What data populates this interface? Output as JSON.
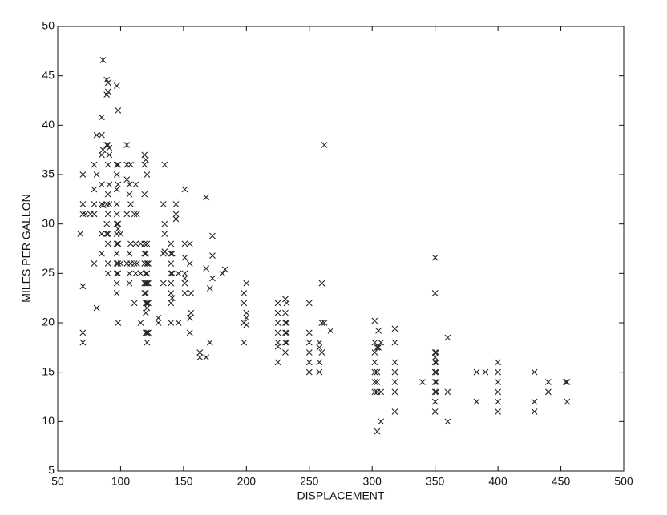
{
  "chart_data": {
    "type": "scatter",
    "xlabel": "DISPLACEMENT",
    "ylabel": "MILES PER GALLON",
    "xlim": [
      50,
      500
    ],
    "ylim": [
      5,
      50
    ],
    "xticks": [
      50,
      100,
      150,
      200,
      250,
      300,
      350,
      400,
      450,
      500
    ],
    "yticks": [
      5,
      10,
      15,
      20,
      25,
      30,
      35,
      40,
      45,
      50
    ],
    "marker": "x",
    "color": "#222222",
    "x": [
      68,
      70,
      70,
      70,
      70,
      70,
      70,
      72,
      76,
      79,
      79,
      79,
      79,
      79,
      81,
      81,
      81,
      85,
      85,
      85,
      85,
      85,
      85,
      85,
      86,
      86,
      86,
      89,
      89,
      89,
      89,
      89,
      89,
      90,
      90,
      90,
      90,
      90,
      90,
      90,
      90,
      90,
      90,
      91,
      91,
      91,
      91,
      97,
      97,
      97,
      97,
      97,
      97,
      97,
      97,
      97,
      97,
      97,
      97,
      97,
      97,
      98,
      98,
      98,
      98,
      98,
      98,
      98,
      98,
      98,
      100,
      100,
      105,
      105,
      105,
      105,
      105,
      107,
      107,
      107,
      107,
      107,
      108,
      108,
      108,
      108,
      111,
      111,
      111,
      112,
      112,
      112,
      113,
      113,
      116,
      116,
      116,
      119,
      119,
      119,
      119,
      119,
      119,
      119,
      119,
      120,
      120,
      120,
      120,
      120,
      120,
      120,
      120,
      121,
      121,
      121,
      121,
      121,
      121,
      121,
      121,
      121,
      122,
      122,
      122,
      122,
      130,
      130,
      134,
      134,
      134,
      135,
      135,
      135,
      135,
      140,
      140,
      140,
      140,
      140,
      140,
      140,
      140,
      141,
      141,
      141,
      144,
      144,
      144,
      146,
      146,
      151,
      151,
      151,
      151,
      151,
      151,
      151,
      155,
      155,
      155,
      155,
      156,
      156,
      163,
      163,
      168,
      168,
      168,
      171,
      171,
      173,
      173,
      173,
      181,
      183,
      198,
      198,
      198,
      198,
      200,
      200,
      200,
      200,
      225,
      225,
      225,
      225,
      225,
      225,
      225,
      231,
      231,
      231,
      231,
      231,
      231,
      232,
      232,
      232,
      232,
      250,
      250,
      250,
      250,
      250,
      250,
      258,
      258,
      258,
      258,
      260,
      260,
      260,
      262,
      262,
      267,
      302,
      302,
      302,
      302,
      302,
      302,
      302,
      304,
      304,
      304,
      304,
      304,
      305,
      305,
      307,
      307,
      307,
      318,
      318,
      318,
      318,
      318,
      318,
      318,
      340,
      350,
      350,
      350,
      350,
      350,
      350,
      350,
      350,
      350,
      350,
      351,
      351,
      351,
      351,
      351,
      360,
      360,
      360,
      383,
      383,
      390,
      400,
      400,
      400,
      400,
      400,
      400,
      429,
      429,
      429,
      440,
      440,
      454,
      455,
      455
    ],
    "values": [
      29,
      18,
      19,
      23.7,
      31,
      32,
      35,
      31,
      31,
      26,
      31,
      32,
      33.5,
      36,
      21.5,
      35,
      39,
      27,
      29,
      32,
      34,
      37,
      39,
      40.8,
      46.6,
      31.9,
      37.5,
      29,
      30,
      32,
      38,
      43.1,
      44.6,
      25,
      26,
      28,
      29,
      31,
      33,
      36,
      38,
      43.4,
      44.3,
      32,
      37,
      37.7,
      34,
      23,
      24,
      25,
      26,
      27,
      28,
      29,
      30,
      31,
      32,
      33.5,
      35,
      36,
      44,
      20,
      25,
      26,
      28,
      29.5,
      30,
      34,
      36,
      41.5,
      29,
      26,
      26,
      31,
      34.5,
      36,
      38,
      24,
      25,
      27,
      33,
      34,
      26,
      28,
      32,
      36,
      22,
      26,
      31,
      25,
      28,
      34,
      26,
      31,
      20,
      25,
      28,
      23,
      24,
      26,
      27,
      28,
      33,
      36,
      37,
      19,
      21,
      22,
      23,
      24,
      25,
      27,
      36.5,
      18,
      19,
      21.5,
      22,
      24,
      25,
      26,
      28,
      35,
      19,
      22,
      24,
      26,
      20,
      20.5,
      24,
      27,
      32,
      27.2,
      29,
      30,
      36,
      20,
      22,
      23,
      24,
      25,
      26,
      27,
      28,
      22.5,
      25,
      27,
      32,
      30.5,
      31,
      20,
      25,
      23,
      24,
      24.5,
      25,
      26.6,
      28,
      33.5,
      19,
      20.5,
      26,
      28,
      21,
      23,
      16.5,
      17,
      16.5,
      25.5,
      32.7,
      18,
      23.5,
      24.5,
      26.8,
      28.8,
      25,
      25.4,
      18,
      20,
      22,
      23,
      19.8,
      20.5,
      21,
      24,
      16,
      17.6,
      18,
      19,
      20,
      21,
      22,
      17,
      18,
      19,
      20,
      21,
      22.4,
      18,
      19,
      20,
      22,
      15,
      16,
      17,
      18,
      19,
      22,
      15,
      16,
      17.5,
      18,
      17,
      20,
      24,
      38,
      20,
      19.2,
      13,
      14,
      15,
      16,
      17,
      18,
      20.2,
      9,
      13,
      14,
      15,
      17.5,
      17.5,
      19.2,
      10,
      13,
      18,
      11,
      13,
      14,
      15,
      16,
      18,
      19.4,
      14,
      11,
      12,
      13,
      14,
      15,
      16,
      16.5,
      17,
      23,
      26.6,
      13,
      14,
      15,
      16,
      17,
      10,
      13,
      18.5,
      12,
      15,
      15,
      11,
      12,
      13,
      14,
      15,
      16,
      11,
      12,
      15,
      13,
      14,
      14,
      12,
      14
    ]
  }
}
